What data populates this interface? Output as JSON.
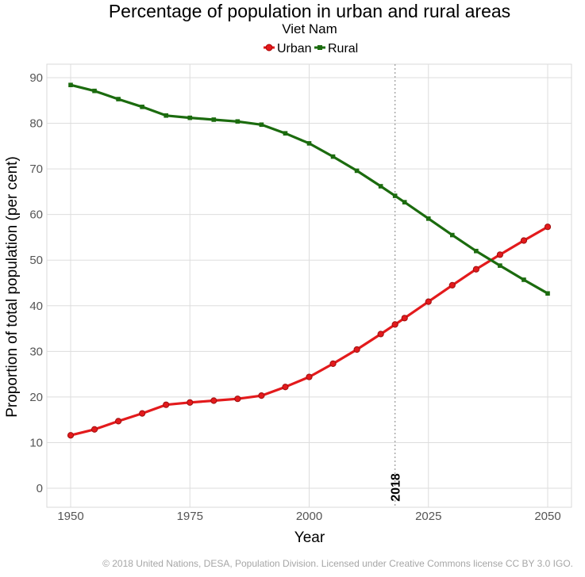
{
  "chart_data": {
    "type": "line",
    "title": "Percentage of population in urban and rural areas",
    "subtitle": "Viet Nam",
    "xlabel": "Year",
    "ylabel": "Proportion of total population (per cent)",
    "xlim": [
      1950,
      2050
    ],
    "ylim": [
      0,
      90
    ],
    "xticks": [
      1950,
      1975,
      2000,
      2025,
      2050
    ],
    "yticks": [
      0,
      10,
      20,
      30,
      40,
      50,
      60,
      70,
      80,
      90
    ],
    "grid": true,
    "legend_position": "top",
    "reference_line": {
      "x": 2018,
      "label": "2018"
    },
    "x": [
      1950,
      1955,
      1960,
      1965,
      1970,
      1975,
      1980,
      1985,
      1990,
      1995,
      2000,
      2005,
      2010,
      2015,
      2018,
      2020,
      2025,
      2030,
      2035,
      2040,
      2045,
      2050
    ],
    "series": [
      {
        "name": "Urban",
        "color": "#e31a1c",
        "marker": "circle",
        "values": [
          11.6,
          12.9,
          14.7,
          16.4,
          18.3,
          18.8,
          19.2,
          19.6,
          20.3,
          22.2,
          24.4,
          27.3,
          30.4,
          33.8,
          35.9,
          37.3,
          40.9,
          44.5,
          48.0,
          51.2,
          54.3,
          57.3
        ]
      },
      {
        "name": "Rural",
        "color": "#1b6b0e",
        "marker": "square",
        "values": [
          88.4,
          87.1,
          85.3,
          83.6,
          81.7,
          81.2,
          80.8,
          80.4,
          79.7,
          77.8,
          75.6,
          72.7,
          69.6,
          66.2,
          64.1,
          62.7,
          59.1,
          55.5,
          52.0,
          48.8,
          45.7,
          42.7
        ]
      }
    ]
  },
  "credit": "© 2018 United Nations, DESA, Population Division. Licensed under Creative Commons license CC BY 3.0 IGO.",
  "colors": {
    "grid": "#dddddd",
    "panel_border": "#d9d9d9",
    "vline": "#999999"
  }
}
